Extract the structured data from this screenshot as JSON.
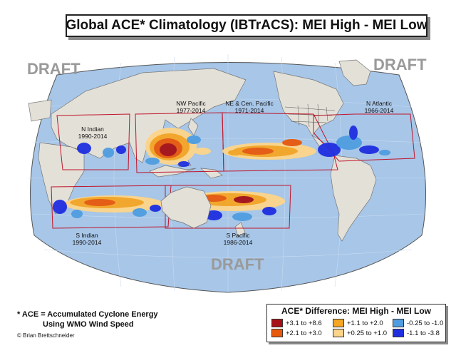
{
  "title": "Global ACE* Climatology (IBTrACS):  MEI High - MEI Low",
  "watermarks": [
    "DRAFT",
    "DRAFT",
    "DRAFT"
  ],
  "regions": [
    {
      "name": "N Indian",
      "period": "1990-2014"
    },
    {
      "name": "NW Pacific",
      "period": "1977-2014"
    },
    {
      "name": "NE & Cen. Pacific",
      "period": "1971-2014"
    },
    {
      "name": "N Atlantic",
      "period": "1966-2014"
    },
    {
      "name": "S Indian",
      "period": "1990-2014"
    },
    {
      "name": "S Pacific",
      "period": "1986-2014"
    }
  ],
  "footnote": {
    "line1": "* ACE = Accumulated Cyclone Energy",
    "line2": "Using WMO Wind Speed",
    "credit": "© Brian Brettschneider"
  },
  "legend": {
    "title": "ACE* Difference: MEI High - MEI Low",
    "items": [
      {
        "label": "+3.1 to +8.6",
        "color": "#a50f15"
      },
      {
        "label": "+2.1 to +3.0",
        "color": "#e8590c"
      },
      {
        "label": "+1.1 to +2.0",
        "color": "#f5a623"
      },
      {
        "label": "+0.25 to +1.0",
        "color": "#fdd58a"
      },
      {
        "label": "-0.25 to -1.0",
        "color": "#4f9de0"
      },
      {
        "label": "-1.1 to -3.8",
        "color": "#1f2fe0"
      }
    ]
  },
  "colors": {
    "ocean": "#a7c6e8",
    "land": "#e3e0d8",
    "region_outline": "#c0152a"
  }
}
